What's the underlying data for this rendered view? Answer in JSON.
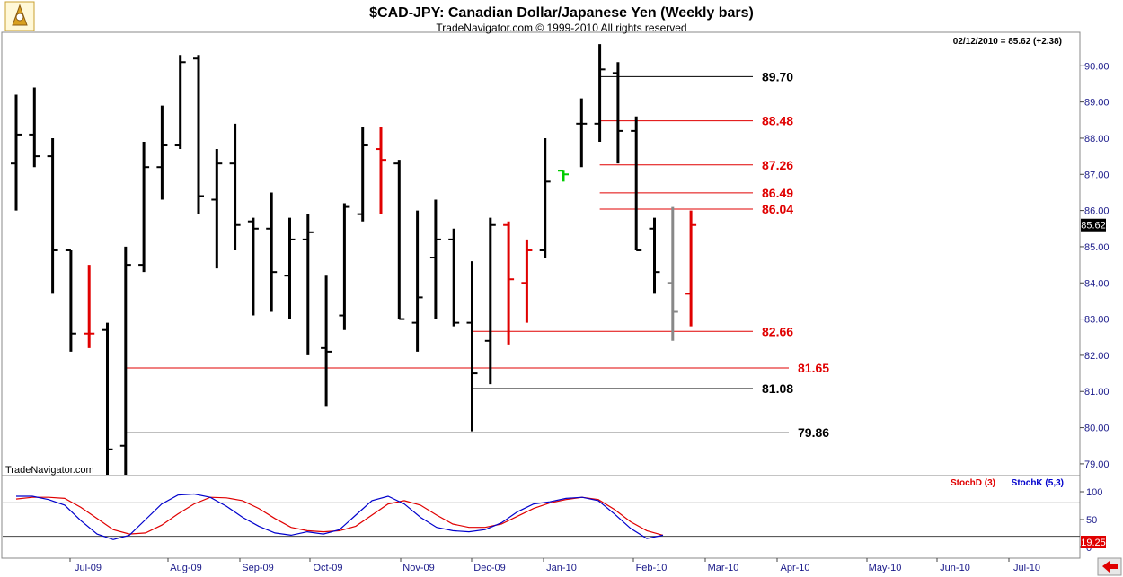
{
  "header": {
    "title": "$CAD-JPY:  Canadian Dollar/Japanese Yen  (Weekly bars)",
    "subtitle": "TradeNavigator.com © 1999-2010 All rights reserved",
    "info": "02/12/2010 = 85.62 (+2.38)",
    "watermark": "TradeNavigator.com",
    "last_price_tag": "85.62",
    "stoch_value_tag": "19.25"
  },
  "colors": {
    "up_or_neutral": "#000000",
    "down": "#e00000",
    "green": "#00cc00",
    "gray": "#888888",
    "axis_text": "#1a1a8a",
    "stochD": "#e00000",
    "stochK": "#0000cc"
  },
  "chart_data": [
    {
      "type": "ohlc",
      "title": "$CAD-JPY:  Canadian Dollar/Japanese Yen  (Weekly bars)",
      "ylim": [
        78.7,
        90.9
      ],
      "y_ticks": [
        "79.00",
        "80.00",
        "81.00",
        "82.00",
        "83.00",
        "84.00",
        "85.00",
        "86.00",
        "87.00",
        "88.00",
        "89.00",
        "90.00"
      ],
      "x_month_labels": [
        "Jul-09",
        "Aug-09",
        "Sep-09",
        "Oct-09",
        "Nov-09",
        "Dec-09",
        "Jan-10",
        "Feb-10",
        "Mar-10",
        "Apr-10",
        "May-10",
        "Jun-10",
        "Jul-10"
      ],
      "bars": [
        {
          "o": 87.3,
          "h": 89.2,
          "l": 86.0,
          "c": 88.1,
          "col": "black"
        },
        {
          "o": 88.1,
          "h": 89.4,
          "l": 87.2,
          "c": 87.5,
          "col": "black"
        },
        {
          "o": 87.5,
          "h": 88.0,
          "l": 83.7,
          "c": 84.9,
          "col": "black"
        },
        {
          "o": 84.9,
          "h": 84.9,
          "l": 82.1,
          "c": 82.6,
          "col": "black"
        },
        {
          "o": 82.6,
          "h": 84.5,
          "l": 82.2,
          "c": 82.6,
          "col": "red"
        },
        {
          "o": 82.7,
          "h": 82.9,
          "l": 78.7,
          "c": 79.4,
          "col": "black"
        },
        {
          "o": 79.5,
          "h": 85.0,
          "l": 78.7,
          "c": 84.5,
          "col": "black"
        },
        {
          "o": 84.5,
          "h": 87.9,
          "l": 84.3,
          "c": 87.2,
          "col": "black"
        },
        {
          "o": 87.2,
          "h": 88.9,
          "l": 86.3,
          "c": 87.8,
          "col": "black"
        },
        {
          "o": 87.8,
          "h": 90.3,
          "l": 87.7,
          "c": 90.1,
          "col": "black"
        },
        {
          "o": 90.2,
          "h": 90.3,
          "l": 85.9,
          "c": 86.4,
          "col": "black"
        },
        {
          "o": 86.3,
          "h": 87.7,
          "l": 84.4,
          "c": 87.3,
          "col": "black"
        },
        {
          "o": 87.3,
          "h": 88.4,
          "l": 84.9,
          "c": 85.6,
          "col": "black"
        },
        {
          "o": 85.7,
          "h": 85.8,
          "l": 83.1,
          "c": 85.5,
          "col": "black"
        },
        {
          "o": 85.5,
          "h": 86.5,
          "l": 83.2,
          "c": 84.3,
          "col": "black"
        },
        {
          "o": 84.2,
          "h": 85.8,
          "l": 83.0,
          "c": 85.2,
          "col": "black"
        },
        {
          "o": 85.2,
          "h": 85.9,
          "l": 82.0,
          "c": 85.4,
          "col": "black"
        },
        {
          "o": 82.2,
          "h": 84.2,
          "l": 80.6,
          "c": 82.1,
          "col": "black"
        },
        {
          "o": 83.1,
          "h": 86.2,
          "l": 82.7,
          "c": 86.1,
          "col": "black"
        },
        {
          "o": 85.9,
          "h": 88.3,
          "l": 85.7,
          "c": 87.8,
          "col": "black"
        },
        {
          "o": 87.7,
          "h": 88.3,
          "l": 85.9,
          "c": 87.4,
          "col": "red"
        },
        {
          "o": 87.3,
          "h": 87.4,
          "l": 83.0,
          "c": 83.0,
          "col": "black"
        },
        {
          "o": 82.9,
          "h": 86.0,
          "l": 82.1,
          "c": 83.6,
          "col": "black"
        },
        {
          "o": 84.7,
          "h": 86.3,
          "l": 83.0,
          "c": 85.2,
          "col": "black"
        },
        {
          "o": 85.2,
          "h": 85.5,
          "l": 82.8,
          "c": 82.9,
          "col": "black"
        },
        {
          "o": 82.9,
          "h": 84.6,
          "l": 79.9,
          "c": 81.5,
          "col": "black"
        },
        {
          "o": 82.4,
          "h": 85.8,
          "l": 81.2,
          "c": 85.6,
          "col": "black"
        },
        {
          "o": 85.6,
          "h": 85.7,
          "l": 82.3,
          "c": 84.1,
          "col": "red"
        },
        {
          "o": 84.0,
          "h": 85.2,
          "l": 82.9,
          "c": 84.9,
          "col": "red"
        },
        {
          "o": 84.9,
          "h": 88.0,
          "l": 84.7,
          "c": 86.8,
          "col": "black"
        },
        {
          "o": 87.1,
          "h": 87.1,
          "l": 86.8,
          "c": 87.0,
          "col": "green"
        },
        {
          "o": 88.4,
          "h": 89.1,
          "l": 87.2,
          "c": 88.4,
          "col": "black"
        },
        {
          "o": 88.4,
          "h": 90.6,
          "l": 87.9,
          "c": 89.9,
          "col": "black"
        },
        {
          "o": 89.8,
          "h": 90.1,
          "l": 87.3,
          "c": 88.2,
          "col": "black"
        },
        {
          "o": 88.2,
          "h": 88.6,
          "l": 84.9,
          "c": 84.9,
          "col": "black"
        },
        {
          "o": 85.5,
          "h": 85.8,
          "l": 83.7,
          "c": 84.3,
          "col": "black"
        },
        {
          "o": 84.0,
          "h": 86.1,
          "l": 82.4,
          "c": 83.2,
          "col": "gray"
        },
        {
          "o": 83.7,
          "h": 86.0,
          "l": 82.8,
          "c": 85.6,
          "col": "red"
        }
      ],
      "levels": [
        {
          "value": 89.7,
          "label": "89.70",
          "color": "#000000",
          "bar_start": 32
        },
        {
          "value": 88.48,
          "label": "88.48",
          "color": "#e00000",
          "bar_start": 32
        },
        {
          "value": 87.26,
          "label": "87.26",
          "color": "#e00000",
          "bar_start": 32
        },
        {
          "value": 86.49,
          "label": "86.49",
          "color": "#e00000",
          "bar_start": 32
        },
        {
          "value": 86.04,
          "label": "86.04",
          "color": "#e00000",
          "bar_start": 32
        },
        {
          "value": 82.66,
          "label": "82.66",
          "color": "#e00000",
          "bar_start": 25
        },
        {
          "value": 81.65,
          "label": "81.65",
          "color": "#e00000",
          "bar_start": 6
        },
        {
          "value": 81.08,
          "label": "81.08",
          "color": "#000000",
          "bar_start": 25
        },
        {
          "value": 79.86,
          "label": "79.86",
          "color": "#000000",
          "bar_start": 6
        }
      ]
    },
    {
      "type": "line",
      "title": "",
      "ylim": [
        0,
        100
      ],
      "y_ticks": [
        "100",
        "50",
        "0"
      ],
      "ref_lines": [
        80,
        20
      ],
      "series": [
        {
          "name": "StochD (3)",
          "color": "#e00000",
          "values": [
            87,
            90,
            90,
            88,
            72,
            52,
            32,
            24,
            26,
            40,
            60,
            78,
            90,
            89,
            84,
            70,
            52,
            36,
            30,
            28,
            30,
            38,
            58,
            78,
            84,
            76,
            58,
            42,
            36,
            36,
            42,
            56,
            70,
            80,
            86,
            90,
            86,
            68,
            46,
            30,
            22
          ]
        },
        {
          "name": "StochK (5,3)",
          "color": "#0000cc",
          "values": [
            92,
            92,
            86,
            76,
            48,
            24,
            14,
            22,
            50,
            78,
            94,
            96,
            90,
            74,
            54,
            38,
            26,
            22,
            28,
            24,
            32,
            58,
            84,
            92,
            78,
            54,
            36,
            30,
            28,
            32,
            44,
            64,
            78,
            82,
            88,
            90,
            84,
            60,
            34,
            16,
            22
          ]
        }
      ]
    }
  ]
}
